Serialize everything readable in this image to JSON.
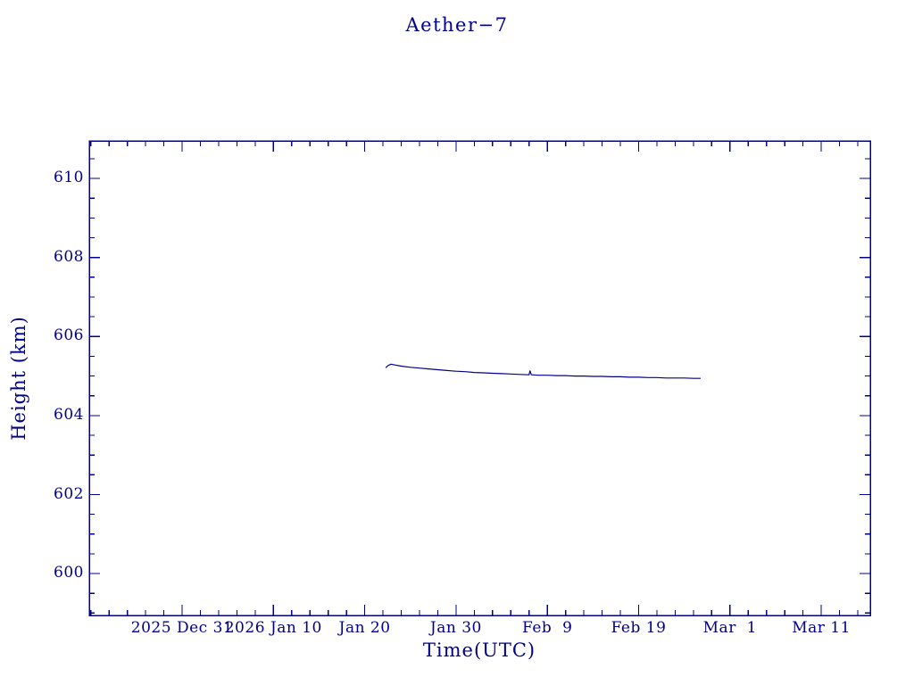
{
  "colors": {
    "accent": "#00008B",
    "background": "#ffffff"
  },
  "chart_data": {
    "type": "line",
    "title": "Aether−7",
    "xlabel": "Time(UTC)",
    "ylabel": "Height (km)",
    "grid": false,
    "legend": "none",
    "x_unit": "days since 2025 Dec 31 (UTC)",
    "xlim": [
      -10.17,
      75.37
    ],
    "ylim": [
      598.94,
      610.95
    ],
    "x_ticks": [
      {
        "value": 0,
        "label": "2025 Dec 31"
      },
      {
        "value": 10,
        "label": "2026 Jan 10"
      },
      {
        "value": 20,
        "label": "Jan 20"
      },
      {
        "value": 30,
        "label": "Jan 30"
      },
      {
        "value": 40,
        "label": "Feb  9"
      },
      {
        "value": 50,
        "label": "Feb 19"
      },
      {
        "value": 60,
        "label": "Mar  1"
      },
      {
        "value": 70,
        "label": "Mar 11"
      }
    ],
    "y_ticks": [
      {
        "value": 600,
        "label": "600"
      },
      {
        "value": 602,
        "label": "602"
      },
      {
        "value": 604,
        "label": "604"
      },
      {
        "value": 606,
        "label": "606"
      },
      {
        "value": 608,
        "label": "608"
      },
      {
        "value": 610,
        "label": "610"
      }
    ],
    "minor_tick_step_x": 2,
    "minor_tick_step_y": 0.5,
    "line_color": "#00008B",
    "series": [
      {
        "name": "height_km",
        "points": [
          [
            22.3,
            605.21
          ],
          [
            22.6,
            605.27
          ],
          [
            22.9,
            605.3
          ],
          [
            23.3,
            605.28
          ],
          [
            24.0,
            605.25
          ],
          [
            25.0,
            605.22
          ],
          [
            26.0,
            605.2
          ],
          [
            27.0,
            605.18
          ],
          [
            28.0,
            605.16
          ],
          [
            29.0,
            605.14
          ],
          [
            30.0,
            605.12
          ],
          [
            31.0,
            605.11
          ],
          [
            32.0,
            605.09
          ],
          [
            33.0,
            605.08
          ],
          [
            34.0,
            605.07
          ],
          [
            35.0,
            605.06
          ],
          [
            36.0,
            605.05
          ],
          [
            37.0,
            605.04
          ],
          [
            38.0,
            605.03
          ],
          [
            38.1,
            605.13
          ],
          [
            38.25,
            605.03
          ],
          [
            39.0,
            605.02
          ],
          [
            40.0,
            605.02
          ],
          [
            41.0,
            605.01
          ],
          [
            42.0,
            605.01
          ],
          [
            43.0,
            605.0
          ],
          [
            44.0,
            605.0
          ],
          [
            45.0,
            604.99
          ],
          [
            46.0,
            604.99
          ],
          [
            47.0,
            604.98
          ],
          [
            48.0,
            604.98
          ],
          [
            49.0,
            604.97
          ],
          [
            50.0,
            604.97
          ],
          [
            51.0,
            604.96
          ],
          [
            52.0,
            604.96
          ],
          [
            53.0,
            604.95
          ],
          [
            54.0,
            604.95
          ],
          [
            55.0,
            604.95
          ],
          [
            56.0,
            604.94
          ],
          [
            56.8,
            604.94
          ]
        ]
      }
    ]
  }
}
